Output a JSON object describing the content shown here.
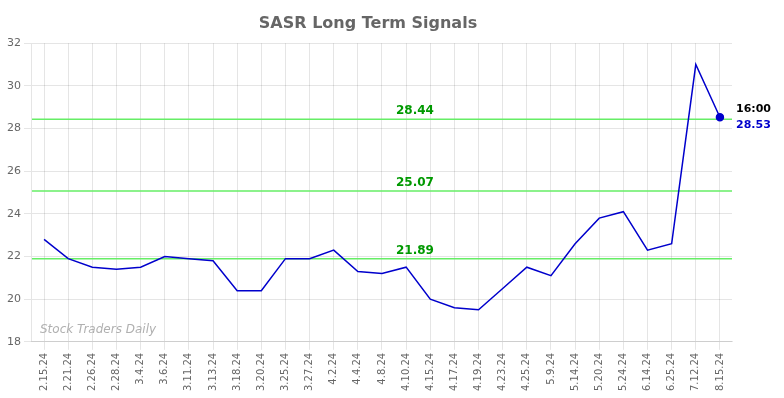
{
  "chart_data": {
    "type": "line",
    "title": "SASR Long Term Signals",
    "categories": [
      "2.15.24",
      "2.21.24",
      "2.26.24",
      "2.28.24",
      "3.4.24",
      "3.6.24",
      "3.11.24",
      "3.13.24",
      "3.18.24",
      "3.20.24",
      "3.25.24",
      "3.27.24",
      "4.2.24",
      "4.4.24",
      "4.8.24",
      "4.10.24",
      "4.15.24",
      "4.17.24",
      "4.19.24",
      "4.23.24",
      "4.25.24",
      "5.9.24",
      "5.14.24",
      "5.20.24",
      "5.24.24",
      "6.14.24",
      "6.25.24",
      "7.12.24",
      "8.15.24"
    ],
    "values": [
      22.8,
      21.9,
      21.5,
      21.4,
      21.5,
      22.0,
      21.9,
      21.8,
      20.4,
      20.4,
      21.9,
      21.9,
      22.3,
      21.3,
      21.2,
      21.5,
      20.0,
      19.6,
      19.5,
      20.5,
      21.5,
      21.1,
      22.6,
      23.8,
      24.1,
      22.3,
      22.6,
      31.0,
      28.53
    ],
    "color": "#0000cc",
    "ylim": [
      18,
      32
    ],
    "yticks": [
      18,
      20,
      22,
      24,
      26,
      28,
      30,
      32
    ],
    "grid": true,
    "annotations": [
      {
        "type": "hline",
        "value": 28.44,
        "text": "28.44",
        "color": "#66ee66"
      },
      {
        "type": "hline",
        "value": 25.07,
        "text": "25.07",
        "color": "#66ee66"
      },
      {
        "type": "hline",
        "value": 21.89,
        "text": "21.89",
        "color": "#66ee66"
      },
      {
        "type": "watermark",
        "text": "Stock Traders Daily"
      },
      {
        "type": "last_point",
        "text": "16:00"
      },
      {
        "type": "last_point",
        "text": "28.53"
      }
    ]
  }
}
